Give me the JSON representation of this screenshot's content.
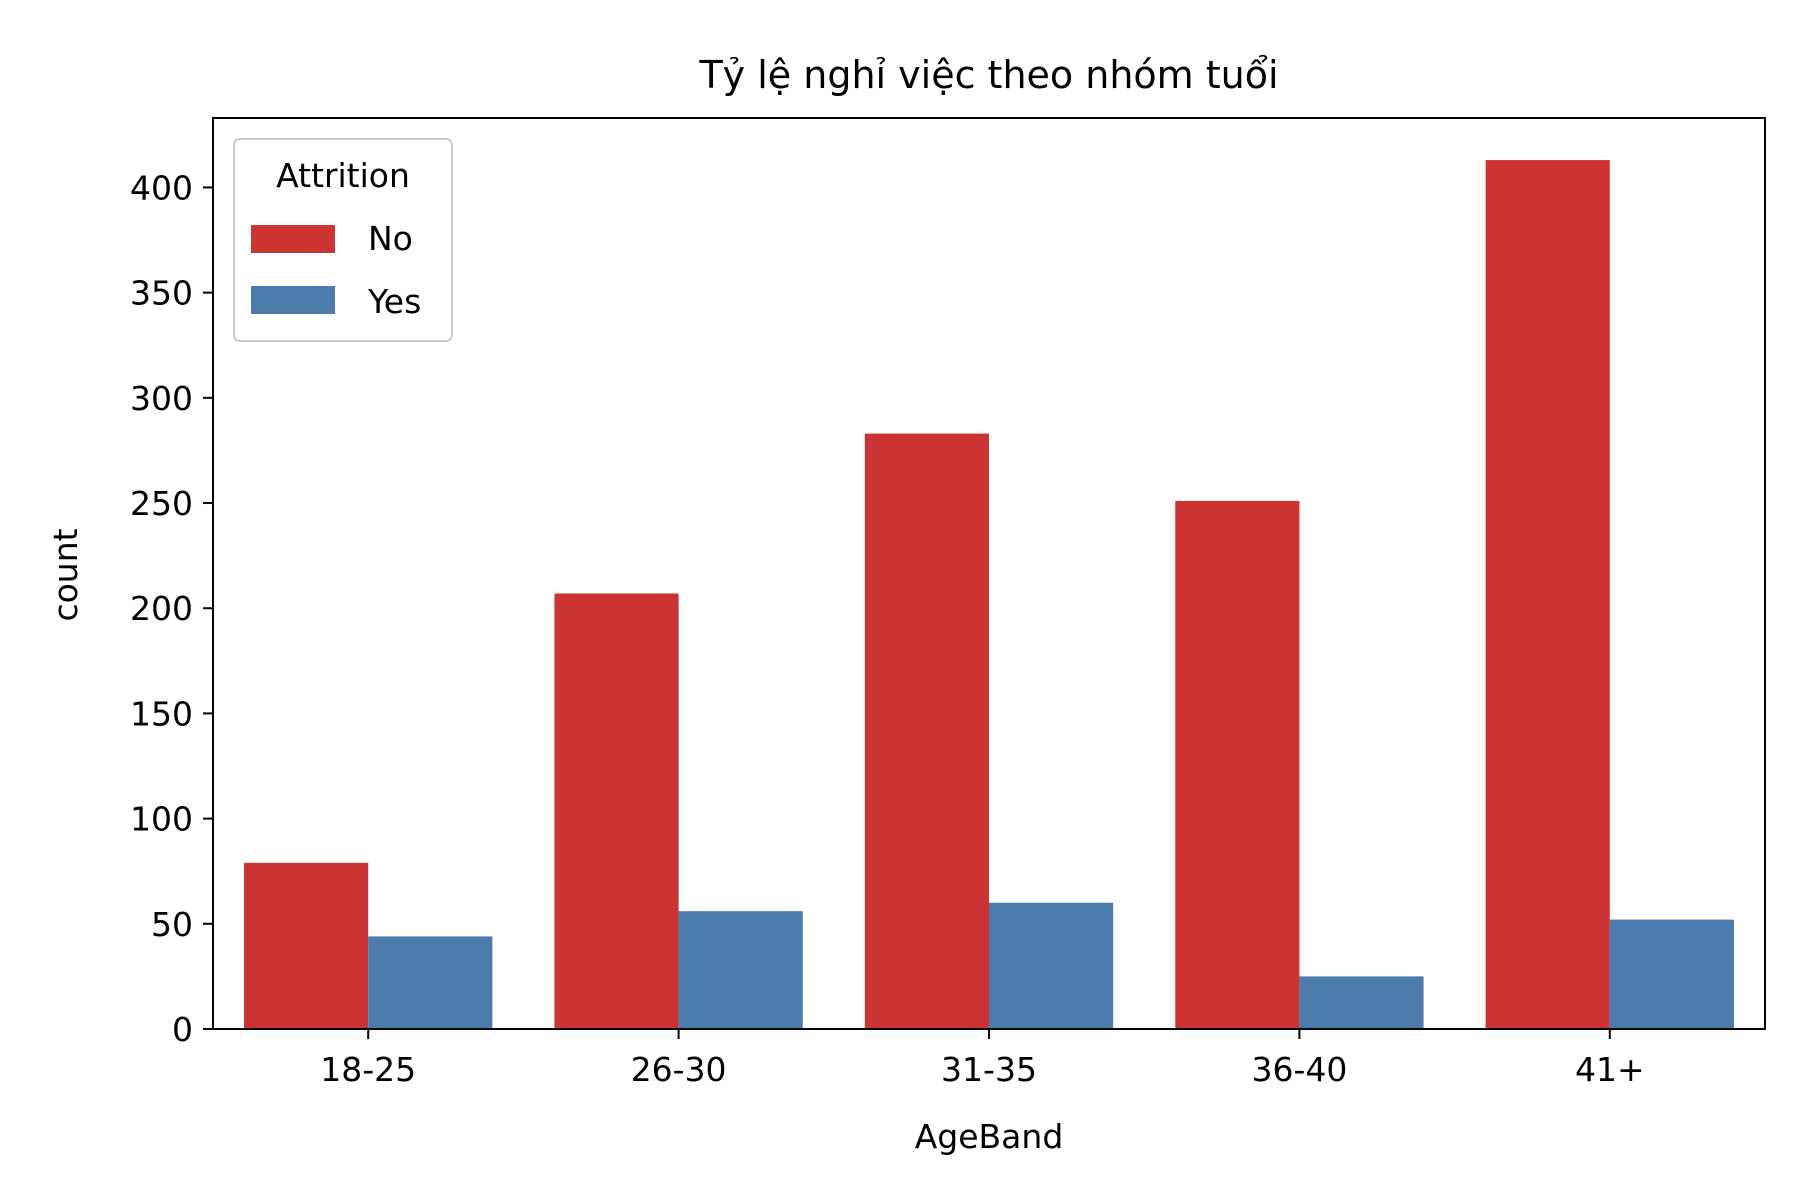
{
  "chart_data": {
    "type": "bar",
    "title": "Tỷ lệ nghỉ việc theo nhóm tuổi",
    "xlabel": "AgeBand",
    "ylabel": "count",
    "categories": [
      "18-25",
      "26-30",
      "31-35",
      "36-40",
      "41+"
    ],
    "series": [
      {
        "name": "No",
        "color": "#cc3333",
        "values": [
          79,
          207,
          283,
          251,
          413
        ]
      },
      {
        "name": "Yes",
        "color": "#4a7bab",
        "values": [
          44,
          56,
          60,
          25,
          52
        ]
      }
    ],
    "ylim": [
      0,
      433
    ],
    "yticks": [
      0,
      50,
      100,
      150,
      200,
      250,
      300,
      350,
      400
    ],
    "grid": false,
    "legend": {
      "title": "Attrition",
      "position": "top-left"
    }
  }
}
